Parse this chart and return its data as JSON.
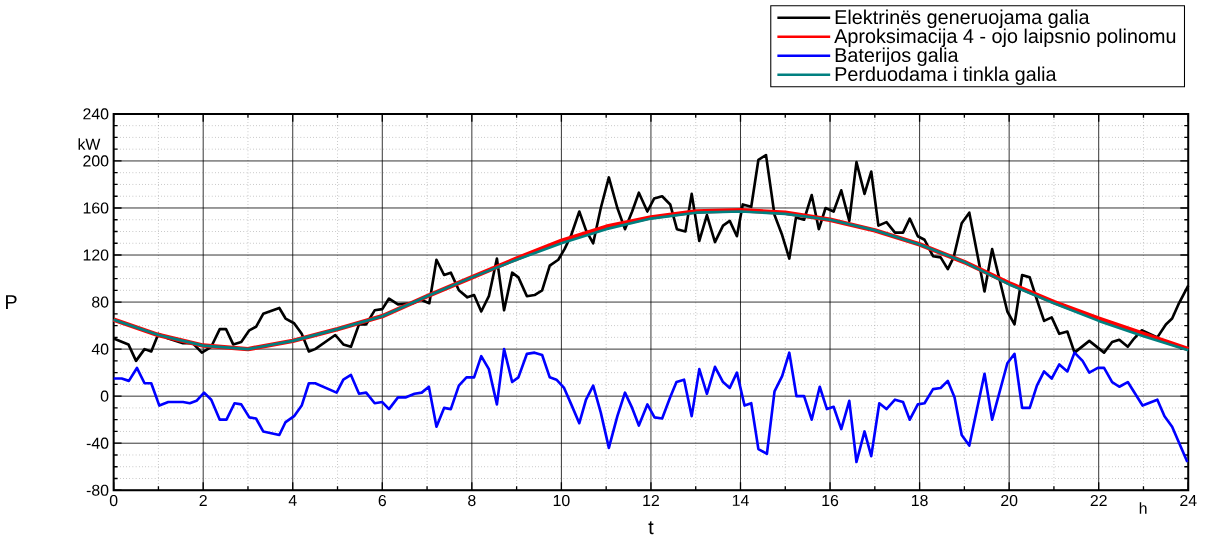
{
  "chart_data": {
    "type": "line",
    "xlabel": "t",
    "ylabel": "P",
    "annotations": [
      "kW",
      "h"
    ],
    "xlim": [
      0,
      24
    ],
    "xticks": [
      0,
      2,
      4,
      6,
      8,
      10,
      12,
      14,
      16,
      18,
      20,
      22,
      24
    ],
    "ylim": [
      -80,
      240
    ],
    "yticks": [
      -80,
      -40,
      0,
      40,
      80,
      120,
      160,
      200,
      240
    ],
    "grid": true,
    "legend": "top right",
    "marker": "none",
    "line_style": "solid",
    "series": [
      {
        "name": "Elektrinës generuojama galia",
        "color": "#000000",
        "x": [
          0,
          0.33,
          0.5,
          0.69,
          0.84,
          1.0,
          1.22,
          1.55,
          1.77,
          1.97,
          2.18,
          2.37,
          2.51,
          2.67,
          2.85,
          3.03,
          3.18,
          3.34,
          3.7,
          3.84,
          4.03,
          4.2,
          4.36,
          4.5,
          4.95,
          5.13,
          5.3,
          5.48,
          5.64,
          5.83,
          6.0,
          6.15,
          6.35,
          6.68,
          6.86,
          7.05,
          7.21,
          7.38,
          7.53,
          7.71,
          7.9,
          8.05,
          8.21,
          8.38,
          8.56,
          8.72,
          8.9,
          9.04,
          9.23,
          9.4,
          9.57,
          9.74,
          9.93,
          10.07,
          10.22,
          10.4,
          10.55,
          10.71,
          10.88,
          11.06,
          11.25,
          11.42,
          11.58,
          11.73,
          11.92,
          12.07,
          12.25,
          12.43,
          12.58,
          12.77,
          12.91,
          13.08,
          13.25,
          13.43,
          13.61,
          13.76,
          13.92,
          14.05,
          14.24,
          14.4,
          14.57,
          14.76,
          14.93,
          15.09,
          15.24,
          15.42,
          15.59,
          15.75,
          15.9,
          16.08,
          16.25,
          16.43,
          16.59,
          16.77,
          16.92,
          17.08,
          17.26,
          17.45,
          17.63,
          17.78,
          17.96,
          18.11,
          18.3,
          18.47,
          18.63,
          18.76,
          18.94,
          19.11,
          19.45,
          19.62,
          19.96,
          20.12,
          20.29,
          20.46,
          20.62,
          20.78,
          20.95,
          21.12,
          21.3,
          21.46,
          21.79,
          22.12,
          22.3,
          22.46,
          22.65,
          22.79,
          22.96,
          23.31,
          23.5,
          23.64,
          23.78,
          24
        ],
        "values": [
          49,
          44,
          30,
          40,
          38,
          53,
          49,
          45,
          45,
          37,
          42,
          57,
          57,
          44,
          46,
          56,
          59,
          70,
          75,
          66,
          62,
          53,
          38,
          40,
          52,
          44,
          42,
          61,
          61,
          73,
          74,
          83,
          78,
          79,
          82,
          79,
          116,
          103,
          105,
          90,
          84,
          86,
          72,
          85,
          117,
          73,
          105,
          101,
          85,
          86,
          90,
          111,
          116,
          125,
          137,
          157,
          141,
          130,
          160,
          186,
          160,
          142,
          157,
          173,
          157,
          168,
          170,
          163,
          142,
          140,
          172,
          132,
          154,
          131,
          145,
          149,
          136,
          163,
          161,
          201,
          205,
          154,
          137,
          117,
          152,
          150,
          171,
          142,
          160,
          157,
          175,
          149,
          199,
          172,
          191,
          145,
          148,
          139,
          139,
          151,
          136,
          133,
          119,
          118,
          108,
          118,
          147,
          156,
          89,
          125,
          72,
          61,
          103,
          101,
          82,
          64,
          67,
          53,
          55,
          37,
          47,
          37,
          46,
          48,
          42,
          49,
          56,
          50,
          61,
          66,
          78,
          94
        ]
      },
      {
        "name": "Aproksimacija 4 - ojo laipsnio polinomu",
        "color": "#ff0000",
        "x": [
          0,
          1,
          2,
          3,
          4,
          5,
          6,
          7,
          8,
          9,
          10,
          11,
          12,
          13,
          14,
          15,
          16,
          17,
          18,
          19,
          20,
          21,
          22,
          23,
          24
        ],
        "values": [
          65,
          52,
          43,
          40,
          47,
          57,
          68,
          85,
          101,
          117,
          132,
          144,
          152,
          157,
          158,
          156,
          150,
          141,
          129,
          114,
          96,
          80,
          66,
          53,
          40
        ]
      },
      {
        "name": "Baterijos galia",
        "color": "#0000ff",
        "x": [
          0,
          0.18,
          0.34,
          0.52,
          0.69,
          0.84,
          1.02,
          1.22,
          1.55,
          1.7,
          1.85,
          2.02,
          2.18,
          2.37,
          2.52,
          2.7,
          2.85,
          3.03,
          3.18,
          3.34,
          3.7,
          3.84,
          4.03,
          4.2,
          4.36,
          4.5,
          4.98,
          5.13,
          5.3,
          5.48,
          5.64,
          5.83,
          6.0,
          6.15,
          6.35,
          6.53,
          6.72,
          6.88,
          7.04,
          7.21,
          7.38,
          7.53,
          7.71,
          7.88,
          8.05,
          8.21,
          8.38,
          8.56,
          8.72,
          8.9,
          9.04,
          9.23,
          9.4,
          9.57,
          9.74,
          9.89,
          10.06,
          10.22,
          10.4,
          10.55,
          10.71,
          10.88,
          11.06,
          11.25,
          11.42,
          11.58,
          11.73,
          11.92,
          12.08,
          12.25,
          12.43,
          12.57,
          12.74,
          12.91,
          13.08,
          13.25,
          13.43,
          13.61,
          13.76,
          13.92,
          14.09,
          14.24,
          14.4,
          14.59,
          14.76,
          14.93,
          15.09,
          15.25,
          15.42,
          15.59,
          15.77,
          15.93,
          16.08,
          16.25,
          16.43,
          16.59,
          16.77,
          16.92,
          17.1,
          17.26,
          17.45,
          17.63,
          17.78,
          17.96,
          18.11,
          18.3,
          18.47,
          18.63,
          18.78,
          18.94,
          19.11,
          19.45,
          19.62,
          19.96,
          20.12,
          20.29,
          20.46,
          20.62,
          20.78,
          20.95,
          21.12,
          21.3,
          21.46,
          21.64,
          21.79,
          21.98,
          22.12,
          22.3,
          22.46,
          22.65,
          22.98,
          23.31,
          23.47,
          23.64,
          23.98
        ],
        "values": [
          15,
          15,
          13,
          24,
          11,
          11,
          -8,
          -5,
          -5,
          -6,
          -4,
          3,
          -3,
          -20,
          -20,
          -6,
          -7,
          -18,
          -19,
          -30,
          -33,
          -22,
          -17,
          -8,
          11,
          11,
          3,
          14,
          18,
          2,
          3,
          -6,
          -5,
          -11,
          -1,
          -1,
          2,
          3,
          8,
          -26,
          -10,
          -11,
          9,
          16,
          16,
          34,
          23,
          -7,
          40,
          12,
          16,
          36,
          37,
          35,
          16,
          14,
          7,
          -7,
          -23,
          -3,
          9,
          -14,
          -44,
          -17,
          3,
          -10,
          -25,
          -7,
          -18,
          -19,
          -1,
          12,
          14,
          -17,
          23,
          2,
          25,
          12,
          7,
          20,
          -8,
          -6,
          -45,
          -49,
          4,
          17,
          37,
          0,
          0,
          -20,
          8,
          -11,
          -9,
          -28,
          -4,
          -56,
          -30,
          -51,
          -6,
          -11,
          -3,
          -5,
          -20,
          -7,
          -6,
          6,
          7,
          13,
          -1,
          -33,
          -42,
          19,
          -20,
          28,
          36,
          -10,
          -10,
          9,
          21,
          15,
          27,
          21,
          37,
          30,
          20,
          24,
          24,
          12,
          8,
          12,
          -8,
          -3,
          -17,
          -26,
          -56
        ]
      },
      {
        "name": "Perduodama i tinkla galia",
        "color": "#008080",
        "x": [
          0,
          1,
          2,
          3,
          4,
          5,
          6,
          7,
          8,
          9,
          10,
          11,
          12,
          13,
          14,
          15,
          16,
          17,
          18,
          19,
          20,
          21,
          22,
          23,
          24
        ],
        "values": [
          65,
          52,
          43,
          40,
          47,
          57,
          68,
          85,
          101,
          116,
          130,
          142,
          151,
          156,
          157,
          155,
          150,
          141,
          129,
          114,
          95,
          79,
          64,
          51,
          39
        ]
      }
    ]
  }
}
